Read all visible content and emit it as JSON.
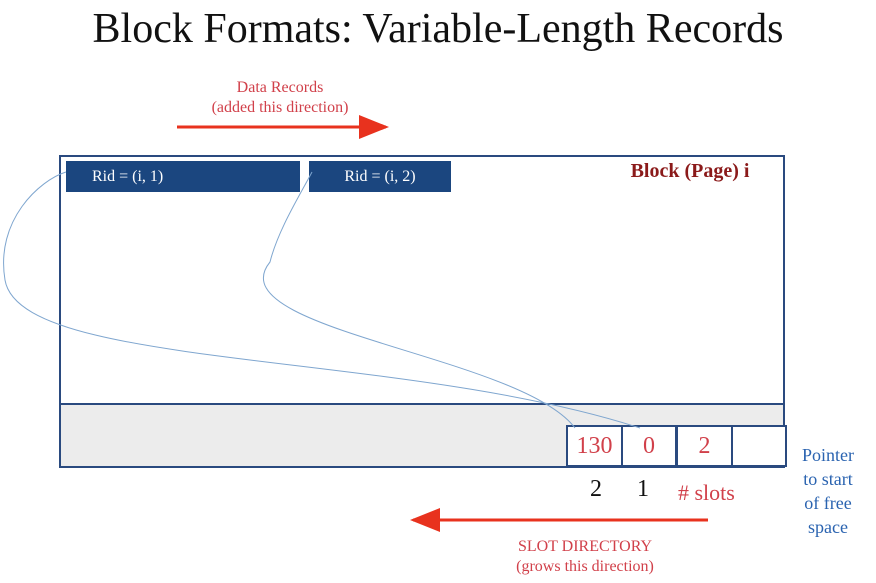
{
  "title": "Block Formats: Variable-Length Records",
  "data_records": {
    "line1": "Data Records",
    "line2": "(added this direction)"
  },
  "block_label": "Block (Page) i",
  "records": [
    {
      "label": "Rid = (i, 1)"
    },
    {
      "label": "Rid = (i, 2)"
    }
  ],
  "slot_directory": {
    "slots": [
      "130",
      "0",
      "2",
      ""
    ],
    "indices": [
      "2",
      "1"
    ],
    "slots_label": "# slots",
    "pointer_label": [
      "Pointer",
      "to start",
      "of free",
      "space"
    ],
    "label_line1": "SLOT DIRECTORY",
    "label_line2": "(grows this direction)"
  },
  "colors": {
    "record_fill": "#1b467f",
    "accent_red": "#d1404a",
    "border_blue": "#2a4a7f",
    "block_label": "#8b1a1a",
    "pointer_text": "#2a63b0",
    "arrow_red": "#e8321e"
  }
}
